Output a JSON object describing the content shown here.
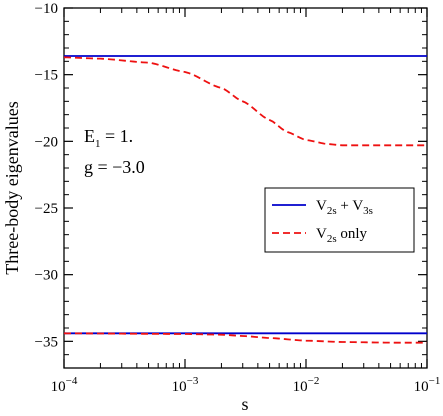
{
  "chart_data": {
    "type": "line",
    "xscale": "log",
    "xlim": [
      0.0001,
      0.1
    ],
    "ylim": [
      -37,
      -10
    ],
    "xlabel": "s",
    "ylabel": "Three-body eigenvalues",
    "x_ticks": [
      {
        "value": 0.0001,
        "base": "10",
        "exp": "−4"
      },
      {
        "value": 0.001,
        "base": "10",
        "exp": "−3"
      },
      {
        "value": 0.01,
        "base": "10",
        "exp": "−2"
      },
      {
        "value": 0.1,
        "base": "10",
        "exp": "−1"
      }
    ],
    "y_ticks": [
      {
        "value": -10,
        "label": "−10"
      },
      {
        "value": -15,
        "label": "−15"
      },
      {
        "value": -20,
        "label": "−20"
      },
      {
        "value": -25,
        "label": "−25"
      },
      {
        "value": -30,
        "label": "−30"
      },
      {
        "value": -35,
        "label": "−35"
      }
    ],
    "annotations": {
      "e1": {
        "main": "E",
        "sub": "1",
        "rest": " = 1."
      },
      "g": "g = −3.0"
    },
    "legend": {
      "placement": "right",
      "entries": [
        {
          "series": "v2s_v3s",
          "parts": [
            {
              "t": "V"
            },
            {
              "t": "2s",
              "sub": true
            },
            {
              "t": " + V"
            },
            {
              "t": "3s",
              "sub": true
            }
          ]
        },
        {
          "series": "v2s_only",
          "parts": [
            {
              "t": "V"
            },
            {
              "t": "2s",
              "sub": true
            },
            {
              "t": " only"
            }
          ]
        }
      ]
    },
    "series": [
      {
        "key": "v2s_v3s",
        "style": "solid",
        "color": "#0000cc",
        "lines": [
          {
            "x": [
              0.0001,
              0.1
            ],
            "y": [
              -13.6,
              -13.6
            ]
          },
          {
            "x": [
              0.0001,
              0.1
            ],
            "y": [
              -34.4,
              -34.4
            ]
          }
        ]
      },
      {
        "key": "v2s_only",
        "style": "dashed",
        "color": "#ee1111",
        "lines": [
          {
            "x": [
              0.0001,
              0.0002,
              0.0005,
              0.001,
              0.002,
              0.003,
              0.005,
              0.007,
              0.01,
              0.015,
              0.02,
              0.03,
              0.05,
              0.1
            ],
            "y": [
              -13.7,
              -13.8,
              -14.1,
              -14.8,
              -16.0,
              -17.0,
              -18.4,
              -19.3,
              -19.9,
              -20.2,
              -20.3,
              -20.3,
              -20.3,
              -20.3
            ]
          },
          {
            "x": [
              0.0001,
              0.001,
              0.002,
              0.003,
              0.005,
              0.01,
              0.02,
              0.05,
              0.1
            ],
            "y": [
              -34.4,
              -34.45,
              -34.5,
              -34.6,
              -34.75,
              -34.95,
              -35.05,
              -35.1,
              -35.1
            ]
          }
        ]
      }
    ]
  }
}
